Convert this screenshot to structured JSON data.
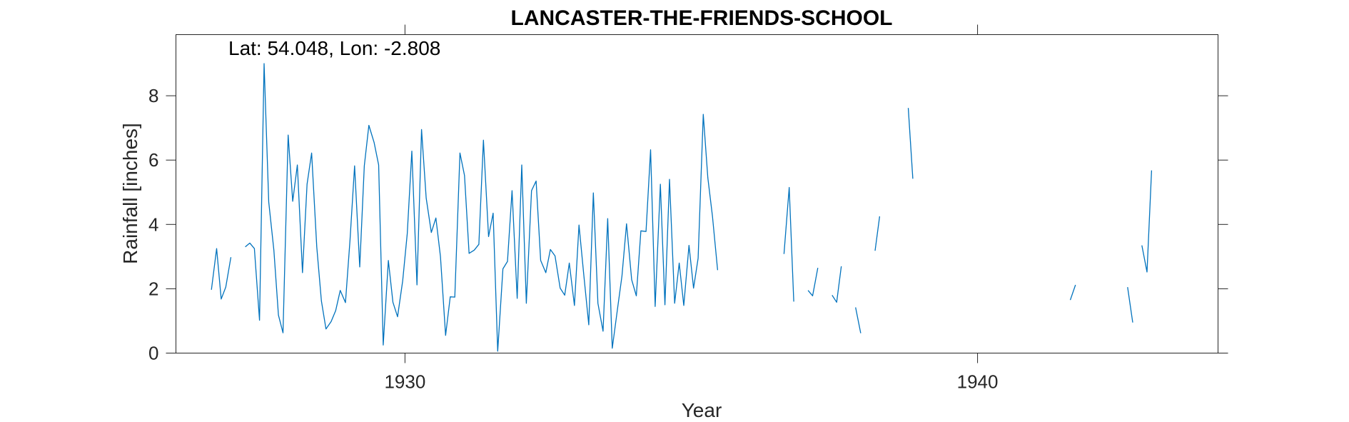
{
  "chart_data": {
    "type": "line",
    "title": "LANCASTER-THE-FRIENDS-SCHOOL",
    "annotation": "Lat: 54.048, Lon: -2.808",
    "xlabel": "Year",
    "ylabel": "Rainfall [inches]",
    "xlim": [
      1926.0,
      1944.2
    ],
    "ylim": [
      0,
      9.9
    ],
    "xticks": [
      1930,
      1940
    ],
    "xtick_labels": [
      "1930",
      "1940"
    ],
    "yticks": [
      0,
      2,
      4,
      6,
      8
    ],
    "ytick_labels": [
      "0",
      "2",
      "4",
      "6",
      "8"
    ],
    "grid": false,
    "series_color": "#0072bd",
    "segments": [
      [
        [
          1926.62,
          1.97
        ],
        [
          1926.71,
          3.25
        ],
        [
          1926.79,
          1.68
        ],
        [
          1926.87,
          2.05
        ],
        [
          1926.96,
          2.98
        ]
      ],
      [
        [
          1927.21,
          3.3
        ],
        [
          1927.29,
          3.42
        ],
        [
          1927.37,
          3.25
        ],
        [
          1927.46,
          1.02
        ],
        [
          1927.54,
          9.0
        ],
        [
          1927.62,
          4.7
        ],
        [
          1927.71,
          3.2
        ],
        [
          1927.79,
          1.18
        ],
        [
          1927.87,
          0.63
        ],
        [
          1927.96,
          6.78
        ],
        [
          1928.04,
          4.72
        ],
        [
          1928.12,
          5.85
        ],
        [
          1928.21,
          2.5
        ],
        [
          1928.29,
          5.25
        ],
        [
          1928.37,
          6.22
        ],
        [
          1928.46,
          3.3
        ],
        [
          1928.54,
          1.62
        ],
        [
          1928.62,
          0.75
        ],
        [
          1928.71,
          0.98
        ],
        [
          1928.79,
          1.32
        ],
        [
          1928.87,
          1.95
        ],
        [
          1928.96,
          1.57
        ],
        [
          1929.04,
          3.52
        ],
        [
          1929.12,
          5.82
        ],
        [
          1929.21,
          2.68
        ],
        [
          1929.29,
          5.82
        ],
        [
          1929.37,
          7.08
        ],
        [
          1929.46,
          6.55
        ],
        [
          1929.54,
          5.85
        ],
        [
          1929.62,
          0.25
        ],
        [
          1929.71,
          2.88
        ],
        [
          1929.79,
          1.58
        ],
        [
          1929.87,
          1.13
        ],
        [
          1929.96,
          2.25
        ],
        [
          1930.04,
          3.72
        ],
        [
          1930.12,
          6.28
        ],
        [
          1930.21,
          2.12
        ],
        [
          1930.29,
          6.95
        ],
        [
          1930.37,
          4.82
        ],
        [
          1930.46,
          3.75
        ],
        [
          1930.54,
          4.2
        ],
        [
          1930.62,
          3.0
        ],
        [
          1930.71,
          0.55
        ],
        [
          1930.79,
          1.75
        ],
        [
          1930.87,
          1.74
        ],
        [
          1930.96,
          6.22
        ],
        [
          1931.04,
          5.52
        ],
        [
          1931.12,
          3.1
        ],
        [
          1931.21,
          3.2
        ],
        [
          1931.29,
          3.38
        ],
        [
          1931.37,
          6.62
        ],
        [
          1931.46,
          3.62
        ],
        [
          1931.54,
          4.35
        ],
        [
          1931.62,
          0.06
        ],
        [
          1931.71,
          2.62
        ],
        [
          1931.79,
          2.85
        ],
        [
          1931.87,
          5.05
        ],
        [
          1931.96,
          1.7
        ],
        [
          1932.04,
          5.85
        ],
        [
          1932.12,
          1.55
        ],
        [
          1932.21,
          5.05
        ],
        [
          1932.29,
          5.35
        ],
        [
          1932.37,
          2.88
        ],
        [
          1932.46,
          2.5
        ],
        [
          1932.54,
          3.22
        ],
        [
          1932.62,
          3.02
        ],
        [
          1932.71,
          2.02
        ],
        [
          1932.79,
          1.8
        ],
        [
          1932.87,
          2.8
        ],
        [
          1932.96,
          1.48
        ],
        [
          1933.04,
          3.98
        ],
        [
          1933.12,
          2.48
        ],
        [
          1933.21,
          0.88
        ],
        [
          1933.29,
          4.98
        ],
        [
          1933.37,
          1.55
        ],
        [
          1933.46,
          0.68
        ],
        [
          1933.54,
          4.18
        ],
        [
          1933.62,
          0.15
        ],
        [
          1933.71,
          1.35
        ],
        [
          1933.79,
          2.4
        ],
        [
          1933.87,
          4.02
        ],
        [
          1933.96,
          2.28
        ],
        [
          1934.04,
          1.78
        ],
        [
          1934.12,
          3.8
        ],
        [
          1934.21,
          3.78
        ],
        [
          1934.29,
          6.32
        ],
        [
          1934.37,
          1.45
        ],
        [
          1934.46,
          5.25
        ],
        [
          1934.54,
          1.5
        ],
        [
          1934.62,
          5.4
        ],
        [
          1934.71,
          1.55
        ],
        [
          1934.79,
          2.8
        ],
        [
          1934.87,
          1.48
        ],
        [
          1934.96,
          3.35
        ],
        [
          1935.04,
          2.02
        ],
        [
          1935.12,
          2.95
        ],
        [
          1935.21,
          7.42
        ],
        [
          1935.29,
          5.45
        ],
        [
          1935.37,
          4.25
        ],
        [
          1935.46,
          2.58
        ]
      ],
      [
        [
          1936.62,
          3.08
        ],
        [
          1936.71,
          5.15
        ],
        [
          1936.79,
          1.6
        ]
      ],
      [
        [
          1937.04,
          1.95
        ],
        [
          1937.12,
          1.78
        ],
        [
          1937.21,
          2.65
        ]
      ],
      [
        [
          1937.46,
          1.8
        ],
        [
          1937.54,
          1.58
        ],
        [
          1937.62,
          2.7
        ]
      ],
      [
        [
          1937.87,
          1.42
        ],
        [
          1937.96,
          0.62
        ]
      ],
      [
        [
          1938.21,
          3.18
        ],
        [
          1938.29,
          4.25
        ]
      ],
      [
        [
          1938.79,
          7.62
        ],
        [
          1938.87,
          5.42
        ]
      ],
      [
        [
          1941.62,
          1.65
        ],
        [
          1941.71,
          2.12
        ]
      ],
      [
        [
          1942.62,
          2.05
        ],
        [
          1942.71,
          0.95
        ]
      ],
      [
        [
          1942.87,
          3.35
        ],
        [
          1942.96,
          2.52
        ],
        [
          1943.04,
          5.68
        ]
      ]
    ]
  }
}
